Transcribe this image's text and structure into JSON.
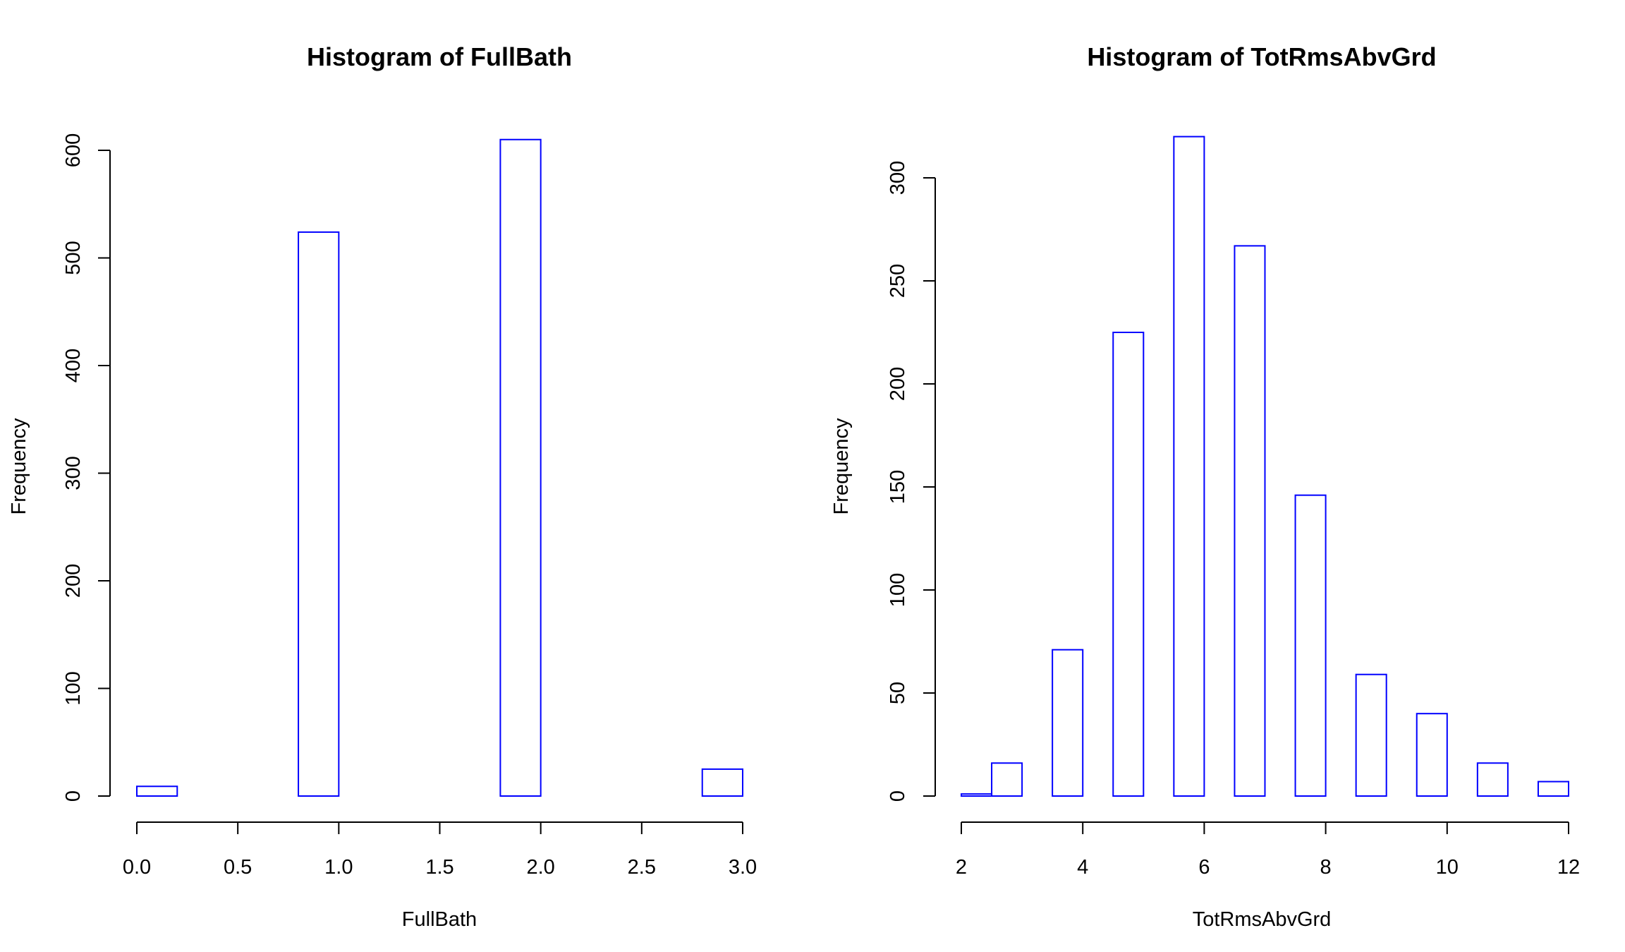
{
  "colors": {
    "bar_stroke": "#0000ff",
    "axis": "#000000",
    "background": "#ffffff"
  },
  "chart_data": [
    {
      "type": "bar",
      "subtype": "histogram",
      "title": "Histogram of  FullBath",
      "xlabel": "FullBath",
      "ylabel": "Frequency",
      "xlim": [
        0,
        3
      ],
      "ylim": [
        0,
        600
      ],
      "x_ticks": [
        "0.0",
        "0.5",
        "1.0",
        "1.5",
        "2.0",
        "2.5",
        "3.0"
      ],
      "x_tick_values": [
        0,
        0.5,
        1,
        1.5,
        2,
        2.5,
        3
      ],
      "y_ticks": [
        "0",
        "100",
        "200",
        "300",
        "400",
        "500",
        "600"
      ],
      "y_tick_values": [
        0,
        100,
        200,
        300,
        400,
        500,
        600
      ],
      "bins": [
        {
          "start": 0.0,
          "end": 0.2,
          "value": 9
        },
        {
          "start": 0.2,
          "end": 0.4,
          "value": 0
        },
        {
          "start": 0.4,
          "end": 0.6,
          "value": 0
        },
        {
          "start": 0.6,
          "end": 0.8,
          "value": 0
        },
        {
          "start": 0.8,
          "end": 1.0,
          "value": 524
        },
        {
          "start": 1.0,
          "end": 1.2,
          "value": 0
        },
        {
          "start": 1.2,
          "end": 1.4,
          "value": 0
        },
        {
          "start": 1.4,
          "end": 1.6,
          "value": 0
        },
        {
          "start": 1.6,
          "end": 1.8,
          "value": 0
        },
        {
          "start": 1.8,
          "end": 2.0,
          "value": 610
        },
        {
          "start": 2.0,
          "end": 2.2,
          "value": 0
        },
        {
          "start": 2.2,
          "end": 2.4,
          "value": 0
        },
        {
          "start": 2.4,
          "end": 2.6,
          "value": 0
        },
        {
          "start": 2.6,
          "end": 2.8,
          "value": 0
        },
        {
          "start": 2.8,
          "end": 3.0,
          "value": 25
        }
      ]
    },
    {
      "type": "bar",
      "subtype": "histogram",
      "title": "Histogram of  TotRmsAbvGrd",
      "xlabel": "TotRmsAbvGrd",
      "ylabel": "Frequency",
      "xlim": [
        2,
        12
      ],
      "ylim": [
        0,
        300
      ],
      "x_ticks": [
        "2",
        "4",
        "6",
        "8",
        "10",
        "12"
      ],
      "x_tick_values": [
        2,
        4,
        6,
        8,
        10,
        12
      ],
      "y_ticks": [
        "0",
        "50",
        "100",
        "150",
        "200",
        "250",
        "300"
      ],
      "y_tick_values": [
        0,
        50,
        100,
        150,
        200,
        250,
        300
      ],
      "bins": [
        {
          "start": 2.0,
          "end": 2.5,
          "value": 1
        },
        {
          "start": 2.5,
          "end": 3.0,
          "value": 16
        },
        {
          "start": 3.0,
          "end": 3.5,
          "value": 0
        },
        {
          "start": 3.5,
          "end": 4.0,
          "value": 71
        },
        {
          "start": 4.0,
          "end": 4.5,
          "value": 0
        },
        {
          "start": 4.5,
          "end": 5.0,
          "value": 225
        },
        {
          "start": 5.0,
          "end": 5.5,
          "value": 0
        },
        {
          "start": 5.5,
          "end": 6.0,
          "value": 320
        },
        {
          "start": 6.0,
          "end": 6.5,
          "value": 0
        },
        {
          "start": 6.5,
          "end": 7.0,
          "value": 267
        },
        {
          "start": 7.0,
          "end": 7.5,
          "value": 0
        },
        {
          "start": 7.5,
          "end": 8.0,
          "value": 146
        },
        {
          "start": 8.0,
          "end": 8.5,
          "value": 0
        },
        {
          "start": 8.5,
          "end": 9.0,
          "value": 59
        },
        {
          "start": 9.0,
          "end": 9.5,
          "value": 0
        },
        {
          "start": 9.5,
          "end": 10.0,
          "value": 40
        },
        {
          "start": 10.0,
          "end": 10.5,
          "value": 0
        },
        {
          "start": 10.5,
          "end": 11.0,
          "value": 16
        },
        {
          "start": 11.0,
          "end": 11.5,
          "value": 0
        },
        {
          "start": 11.5,
          "end": 12.0,
          "value": 7
        }
      ]
    }
  ]
}
